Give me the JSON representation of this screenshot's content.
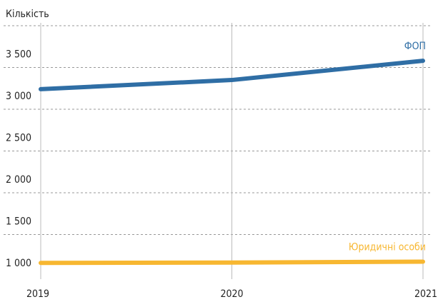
{
  "chart_data": {
    "type": "line",
    "y_label": "Кількість",
    "categories": [
      "2019",
      "2020",
      "2021"
    ],
    "series": [
      {
        "name": "ФОП",
        "color": "#2f6ea5",
        "values": [
          3240,
          3350,
          3580
        ]
      },
      {
        "name": "Юридичні особи",
        "color": "#f7b731",
        "values": [
          1160,
          1165,
          1175
        ]
      }
    ],
    "ylim": [
      1000,
      4000
    ],
    "yticks": [
      {
        "value": 1000,
        "label": "1 000"
      },
      {
        "value": 1500,
        "label": "1 500"
      },
      {
        "value": 2000,
        "label": "2 000"
      },
      {
        "value": 2500,
        "label": "2 500"
      },
      {
        "value": 3000,
        "label": "3 000"
      },
      {
        "value": 3500,
        "label": "3 500"
      }
    ],
    "grid": true
  }
}
